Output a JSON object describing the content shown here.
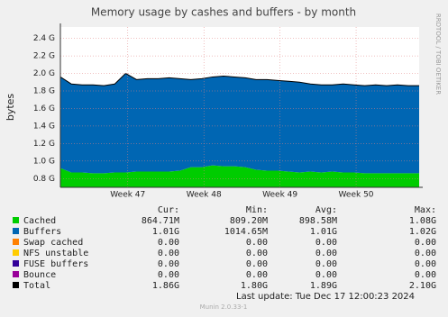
{
  "chart_data": {
    "type": "area",
    "title": "Memory usage by cashes and buffers - by month",
    "y_label": "bytes",
    "side_label": "RRDTOOL / TOBI OETIKER",
    "x": [
      0,
      1,
      2,
      3,
      4,
      5,
      6,
      7,
      8,
      9,
      10,
      11,
      12,
      13,
      14,
      15,
      16,
      17,
      18,
      19,
      20,
      21,
      22,
      23,
      24,
      25,
      26,
      27,
      28,
      29,
      30,
      31,
      32,
      33
    ],
    "xlim": [
      0,
      33
    ],
    "xticks": [
      {
        "value": 6.2,
        "label": "Week 47"
      },
      {
        "value": 13.2,
        "label": "Week 48"
      },
      {
        "value": 20.2,
        "label": "Week 49"
      },
      {
        "value": 27.2,
        "label": "Week 50"
      }
    ],
    "ylim": [
      0.7,
      2.53
    ],
    "yticks": [
      {
        "value": 0.8,
        "label": "0.8 G"
      },
      {
        "value": 1.0,
        "label": "1.0 G"
      },
      {
        "value": 1.2,
        "label": "1.2 G"
      },
      {
        "value": 1.4,
        "label": "1.4 G"
      },
      {
        "value": 1.6,
        "label": "1.6 G"
      },
      {
        "value": 1.8,
        "label": "1.8 G"
      },
      {
        "value": 2.0,
        "label": "2.0 G"
      },
      {
        "value": 2.2,
        "label": "2.2 G"
      },
      {
        "value": 2.4,
        "label": "2.4 G"
      }
    ],
    "grid": true,
    "series": [
      {
        "name": "Cached",
        "color": "#00cc00",
        "values": [
          0.92,
          0.87,
          0.87,
          0.86,
          0.86,
          0.87,
          0.87,
          0.88,
          0.88,
          0.88,
          0.88,
          0.89,
          0.93,
          0.93,
          0.95,
          0.94,
          0.94,
          0.93,
          0.9,
          0.89,
          0.89,
          0.88,
          0.87,
          0.88,
          0.87,
          0.88,
          0.87,
          0.87,
          0.86,
          0.86,
          0.86,
          0.86,
          0.86,
          0.86
        ]
      },
      {
        "name": "Buffers",
        "color": "#0066b3",
        "values": [
          1.04,
          1.01,
          1.0,
          1.01,
          1.0,
          1.01,
          1.13,
          1.05,
          1.06,
          1.06,
          1.07,
          1.05,
          1.0,
          1.01,
          1.01,
          1.03,
          1.02,
          1.02,
          1.03,
          1.04,
          1.03,
          1.03,
          1.03,
          1.0,
          1.0,
          0.99,
          1.01,
          1.0,
          1.0,
          1.01,
          1.0,
          1.01,
          1.0,
          1.0
        ]
      },
      {
        "name": "Swap cached",
        "color": "#ff8000",
        "values": [
          0,
          0,
          0,
          0,
          0,
          0,
          0,
          0,
          0,
          0,
          0,
          0,
          0,
          0,
          0,
          0,
          0,
          0,
          0,
          0,
          0,
          0,
          0,
          0,
          0,
          0,
          0,
          0,
          0,
          0,
          0,
          0,
          0,
          0
        ]
      },
      {
        "name": "NFS unstable",
        "color": "#ffcc00",
        "values": [
          0,
          0,
          0,
          0,
          0,
          0,
          0,
          0,
          0,
          0,
          0,
          0,
          0,
          0,
          0,
          0,
          0,
          0,
          0,
          0,
          0,
          0,
          0,
          0,
          0,
          0,
          0,
          0,
          0,
          0,
          0,
          0,
          0,
          0
        ]
      },
      {
        "name": "FUSE buffers",
        "color": "#330099",
        "values": [
          0,
          0,
          0,
          0,
          0,
          0,
          0,
          0,
          0,
          0,
          0,
          0,
          0,
          0,
          0,
          0,
          0,
          0,
          0,
          0,
          0,
          0,
          0,
          0,
          0,
          0,
          0,
          0,
          0,
          0,
          0,
          0,
          0,
          0
        ]
      },
      {
        "name": "Bounce",
        "color": "#990099",
        "values": [
          0,
          0,
          0,
          0,
          0,
          0,
          0,
          0,
          0,
          0,
          0,
          0,
          0,
          0,
          0,
          0,
          0,
          0,
          0,
          0,
          0,
          0,
          0,
          0,
          0,
          0,
          0,
          0,
          0,
          0,
          0,
          0,
          0,
          0
        ]
      },
      {
        "name": "Total",
        "color": "#000000",
        "style": "line",
        "values": [
          1.96,
          1.88,
          1.87,
          1.87,
          1.86,
          1.88,
          2.0,
          1.93,
          1.94,
          1.94,
          1.95,
          1.94,
          1.93,
          1.94,
          1.96,
          1.97,
          1.96,
          1.95,
          1.93,
          1.93,
          1.92,
          1.91,
          1.9,
          1.88,
          1.87,
          1.87,
          1.88,
          1.87,
          1.86,
          1.87,
          1.86,
          1.87,
          1.86,
          1.86
        ]
      }
    ],
    "legend_table": {
      "headers": [
        "Cur:",
        "Min:",
        "Avg:",
        "Max:"
      ],
      "rows": [
        [
          "864.71M",
          "809.20M",
          "898.58M",
          "1.08G"
        ],
        [
          "1.01G",
          "1014.65M",
          "1.01G",
          "1.02G"
        ],
        [
          "0.00",
          "0.00",
          "0.00",
          "0.00"
        ],
        [
          "0.00",
          "0.00",
          "0.00",
          "0.00"
        ],
        [
          "0.00",
          "0.00",
          "0.00",
          "0.00"
        ],
        [
          "0.00",
          "0.00",
          "0.00",
          "0.00"
        ],
        [
          "1.86G",
          "1.80G",
          "1.89G",
          "2.10G"
        ]
      ]
    },
    "last_update": "Last update:  Tue Dec 17 12:00:23 2024",
    "footer": "Munin 2.0.33-1"
  }
}
